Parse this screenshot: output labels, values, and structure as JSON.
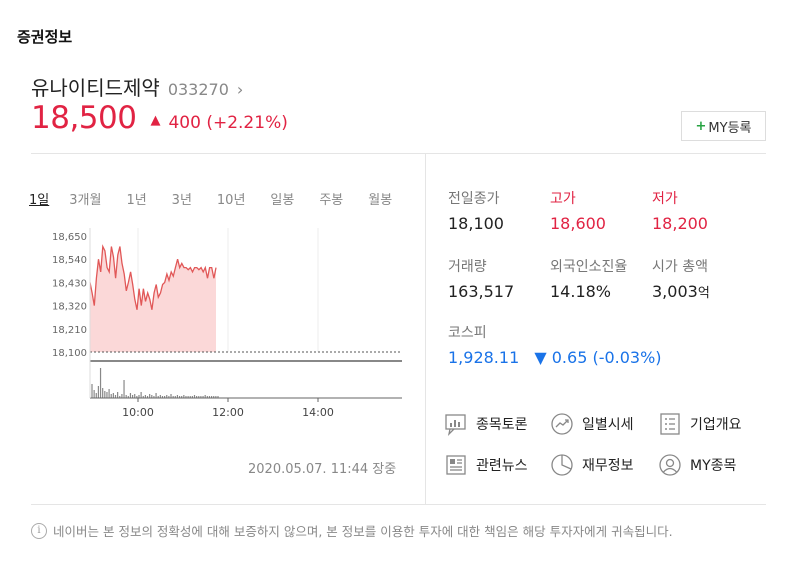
{
  "section_title": "증권정보",
  "stock": {
    "name": "유나이티드제약",
    "code": "033270",
    "chevron": "›",
    "price": "18,500",
    "change": "400 (+2.21%)",
    "my_button_plus": "+",
    "my_button_label": "MY등록"
  },
  "period_tabs": [
    "1일",
    "3개월",
    "1년",
    "3년",
    "10년",
    "일봉",
    "주봉",
    "월봉"
  ],
  "active_period": "1일",
  "chart_data": {
    "type": "area",
    "y_tick_labels": [
      "18,650",
      "18,540",
      "18,430",
      "18,320",
      "18,210",
      "18,100"
    ],
    "x_tick_labels": [
      "10:00",
      "12:00",
      "14:00"
    ],
    "ylim": [
      18100,
      18650
    ],
    "base_line": 18100,
    "series": [
      {
        "values": [
          18430,
          18380,
          18320,
          18450,
          18540,
          18480,
          18600,
          18580,
          18500,
          18480,
          18600,
          18550,
          18450,
          18560,
          18600,
          18520,
          18470,
          18390,
          18430,
          18480,
          18420,
          18350,
          18300,
          18400,
          18320,
          18400,
          18340,
          18380,
          18350,
          18300,
          18380,
          18420,
          18360,
          18380,
          18420,
          18430,
          18470,
          18440,
          18480,
          18460,
          18500,
          18540,
          18500,
          18520,
          18500,
          18500,
          18490,
          18500,
          18480,
          18500,
          18500,
          18490,
          18500,
          18480,
          18500,
          18450,
          18500,
          18500,
          18450,
          18500
        ]
      }
    ],
    "volume": [
      14,
      8,
      5,
      12,
      30,
      10,
      7,
      6,
      9,
      4,
      5,
      3,
      6,
      2,
      4,
      18,
      3,
      2,
      5,
      3,
      4,
      2,
      3,
      6,
      2,
      3,
      2,
      4,
      3,
      2,
      5,
      2,
      3,
      2,
      2,
      3,
      2,
      4,
      2,
      2,
      3,
      2,
      2,
      3,
      2,
      2,
      2,
      2,
      3,
      2,
      2,
      2,
      2,
      3,
      2,
      2,
      2,
      2,
      2,
      2
    ],
    "colors": {
      "line": "#e15858",
      "fill": "#fbd8d8",
      "axis": "#999999"
    }
  },
  "chart_timestamp": "2020.05.07. 11:44 장중",
  "stats": [
    {
      "label": "전일종가",
      "value": "18,100",
      "tone": "normal"
    },
    {
      "label": "고가",
      "value": "18,600",
      "tone": "up"
    },
    {
      "label": "저가",
      "value": "18,200",
      "tone": "up"
    },
    {
      "label": "거래량",
      "value": "163,517",
      "tone": "normal"
    },
    {
      "label": "외국인소진율",
      "value": "14.18%",
      "tone": "normal"
    },
    {
      "label": "시가 총액",
      "value": "3,003",
      "unit": "억",
      "tone": "normal"
    }
  ],
  "index": {
    "label": "코스피",
    "value": "1,928.11",
    "arrow": "▼",
    "change": "0.65 (-0.03%)"
  },
  "links": [
    {
      "label": "종목토론",
      "icon": "discussion-icon"
    },
    {
      "label": "일별시세",
      "icon": "daily-trend-icon"
    },
    {
      "label": "기업개요",
      "icon": "company-overview-icon"
    },
    {
      "label": "관련뉴스",
      "icon": "news-icon"
    },
    {
      "label": "재무정보",
      "icon": "pie-chart-icon"
    },
    {
      "label": "MY종목",
      "icon": "user-icon"
    }
  ],
  "disclaimer": "네이버는 본 정보의 정확성에 대해 보증하지 않으며, 본 정보를 이용한 투자에 대한 책임은 해당 투자자에게 귀속됩니다.",
  "disclaimer_icon": "i"
}
